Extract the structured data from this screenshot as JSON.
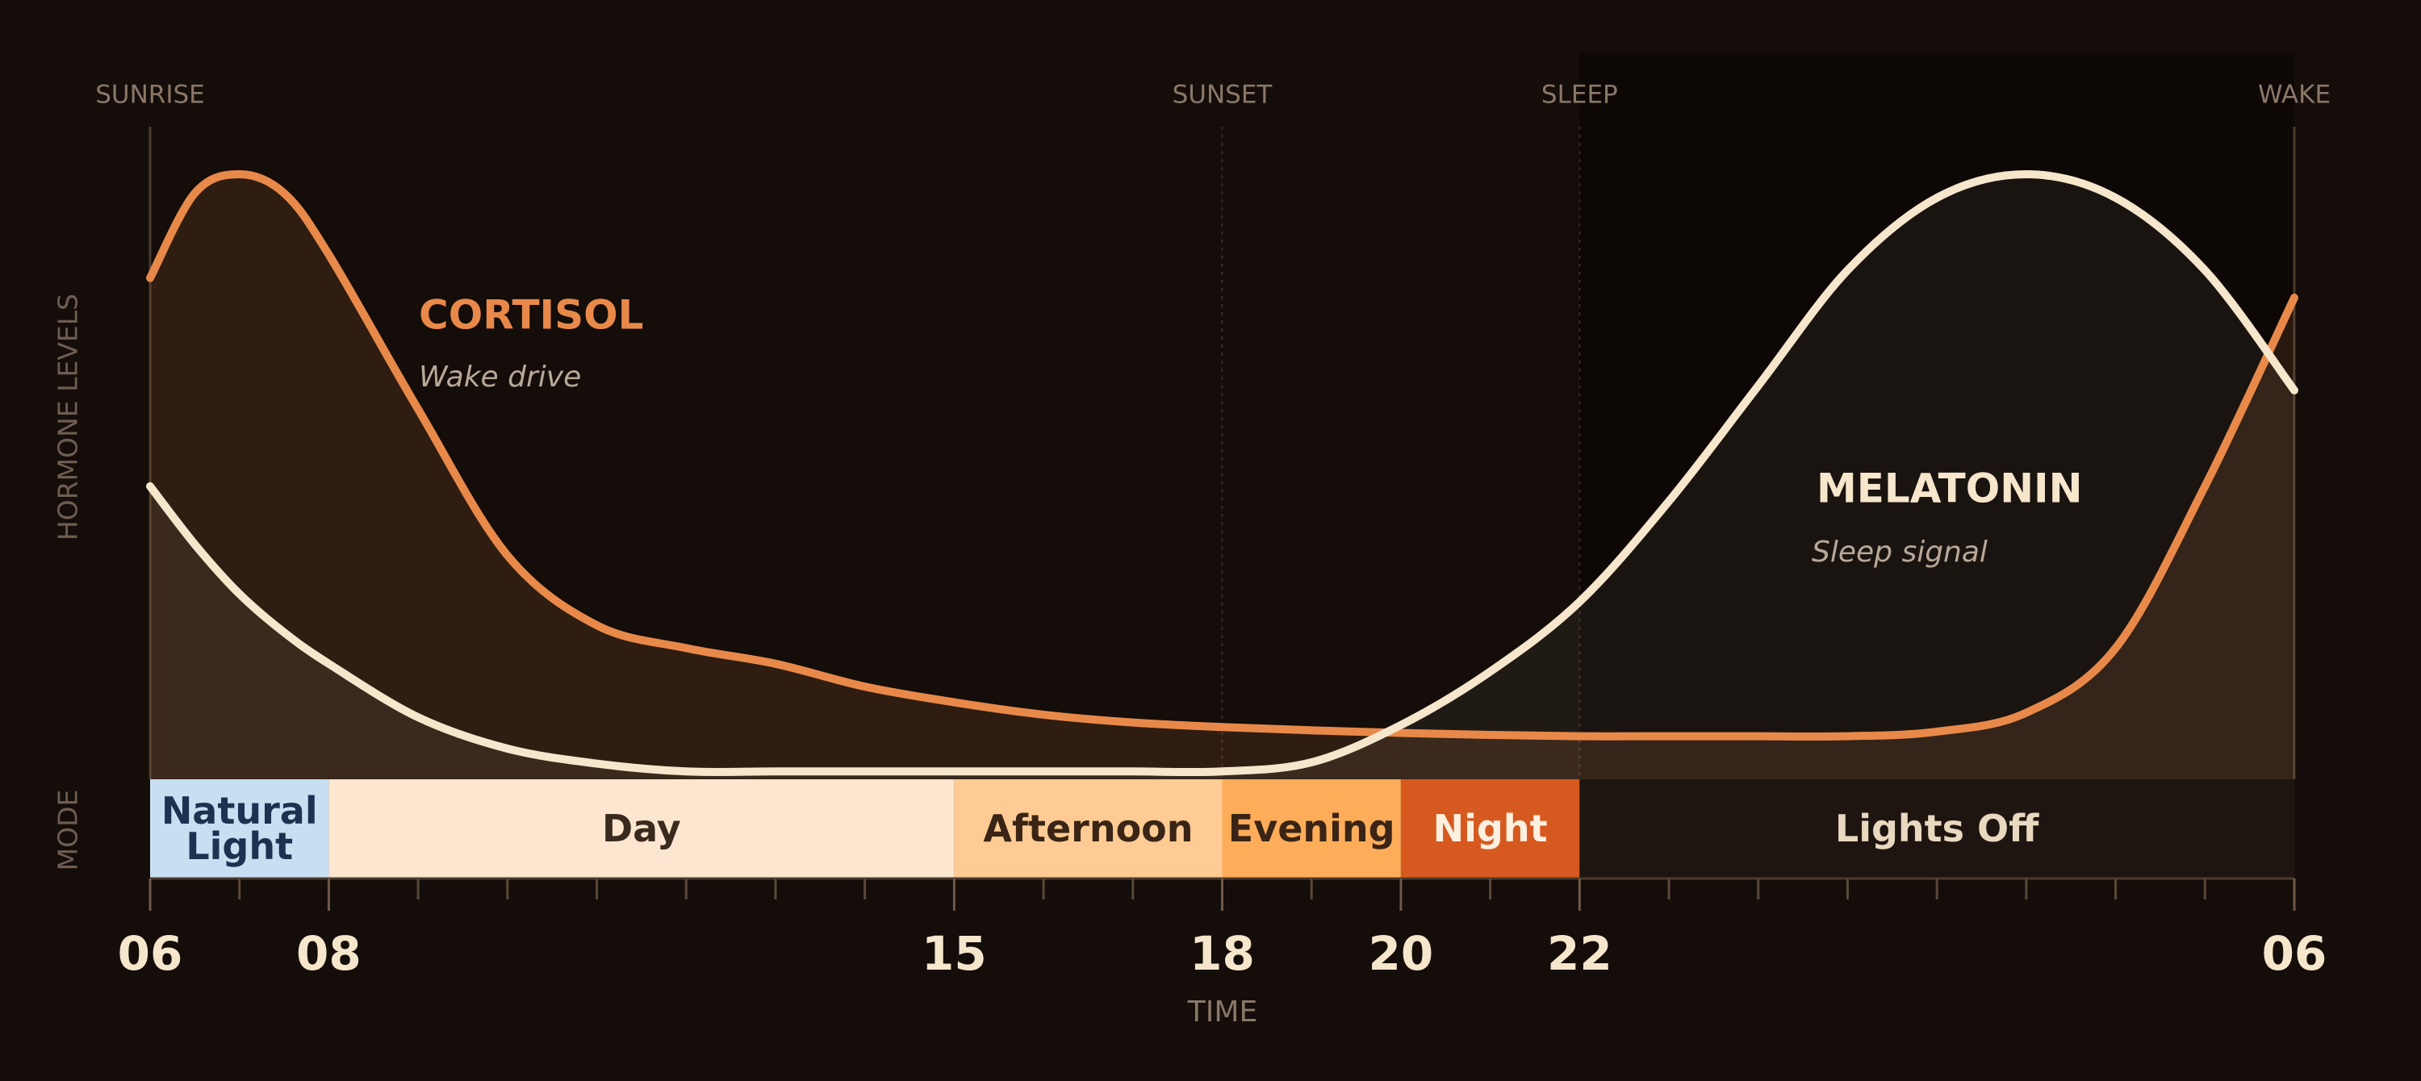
{
  "chart_data": {
    "type": "area",
    "xlabel": "TIME",
    "ylabel": "HORMONE LEVELS",
    "mode_label": "MODE",
    "xlim": [
      6,
      30
    ],
    "ylim": [
      0,
      100
    ],
    "xticks": [
      {
        "value": 6,
        "label": "06"
      },
      {
        "value": 8,
        "label": "08"
      },
      15,
      18,
      20,
      22,
      {
        "value": 30,
        "label": "06"
      }
    ],
    "minor_xticks": [
      7,
      9,
      10,
      11,
      12,
      13,
      14,
      16,
      17,
      19,
      21,
      23,
      24,
      25,
      26,
      27,
      28,
      29
    ],
    "markers": [
      {
        "label": "SUNRISE",
        "x": 6
      },
      {
        "label": "SUNSET",
        "x": 18
      },
      {
        "label": "SLEEP",
        "x": 22
      },
      {
        "label": "WAKE",
        "x": 30
      }
    ],
    "x": [
      6,
      6.5,
      7,
      7.5,
      8,
      9,
      10,
      11,
      12,
      13,
      14,
      15,
      16,
      17,
      18,
      19,
      20,
      21,
      22,
      23,
      24,
      25,
      26,
      27,
      28,
      29,
      30
    ],
    "series": [
      {
        "name": "CORTISOL",
        "note": "Wake drive",
        "color": "#e8894a",
        "values": [
          76.8,
          89.8,
          92.7,
          89.8,
          80.4,
          56.7,
          34.3,
          23.6,
          20.1,
          17.7,
          14.2,
          11.8,
          9.9,
          8.7,
          8.0,
          7.5,
          7.1,
          6.8,
          6.6,
          6.6,
          6.6,
          6.6,
          7.3,
          10.2,
          20.1,
          44.9,
          73.8
        ]
      },
      {
        "name": "MELATONIN",
        "note": "Sleep signal",
        "color": "#f5e6cc",
        "values": [
          44.9,
          36,
          28.4,
          22.5,
          17.7,
          9.5,
          4.7,
          2.4,
          1.2,
          1.2,
          1.2,
          1.2,
          1.2,
          1.2,
          1.2,
          2.6,
          8.3,
          16.5,
          27.2,
          42.6,
          60.3,
          78,
          89.1,
          92.7,
          89.1,
          78,
          59.6
        ]
      }
    ],
    "modes": [
      {
        "label": "Natural Light",
        "start": 6,
        "end": 8,
        "color": "#c8dff2",
        "text_color": "#1b3350"
      },
      {
        "label": "Day",
        "start": 8,
        "end": 15,
        "color": "#fde6cf",
        "text_color": "#3a2a1e"
      },
      {
        "label": "Afternoon",
        "start": 15,
        "end": 18,
        "color": "#fdcb93",
        "text_color": "#3a2415"
      },
      {
        "label": "Evening",
        "start": 18,
        "end": 20,
        "color": "#fdad5a",
        "text_color": "#3a2415"
      },
      {
        "label": "Night",
        "start": 20,
        "end": 22,
        "color": "#d65a20",
        "text_color": "#fff0e0"
      },
      {
        "label": "Lights Off",
        "start": 22,
        "end": 30,
        "color": "#1f1510",
        "text_color": "#e8d8c0"
      }
    ]
  }
}
